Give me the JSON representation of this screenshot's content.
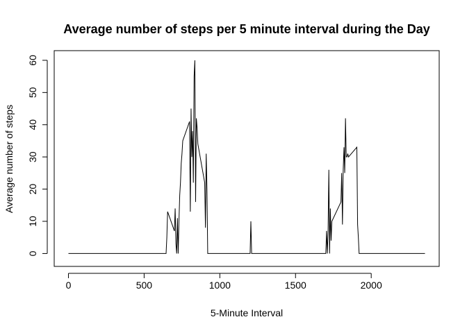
{
  "chart_data": {
    "type": "line",
    "title": "Average number of steps per 5 minute interval during the Day",
    "xlabel": "5-Minute Interval",
    "ylabel": "Average number of steps",
    "xlim": [
      -94,
      2449
    ],
    "ylim": [
      -4,
      63
    ],
    "x_ticks": [
      0,
      500,
      1000,
      1500,
      2000
    ],
    "y_ticks": [
      0,
      10,
      20,
      30,
      40,
      50,
      60
    ],
    "x_tick_labels": [
      "0",
      "500",
      "1000",
      "1500",
      "2000"
    ],
    "y_tick_labels": [
      "0",
      "10",
      "20",
      "30",
      "40",
      "50",
      "60"
    ],
    "grid": false,
    "legend": "none",
    "line_color": "#000000",
    "series": [
      {
        "x": [
          0,
          645,
          650,
          655,
          700,
          705,
          710,
          715,
          720,
          725,
          730,
          735,
          740,
          745,
          750,
          755,
          800,
          805,
          810,
          815,
          820,
          825,
          830,
          835,
          840,
          845,
          850,
          855,
          900,
          905,
          910,
          915,
          920,
          925,
          930,
          1200,
          1205,
          1210,
          1215,
          1700,
          1705,
          1710,
          1715,
          1720,
          1725,
          1730,
          1735,
          1740,
          1800,
          1805,
          1810,
          1815,
          1820,
          1825,
          1830,
          1835,
          1840,
          1845,
          1850,
          1905,
          1910,
          1915,
          1920,
          2355
        ],
        "y": [
          0,
          0,
          5,
          13,
          7,
          14,
          3,
          0,
          11,
          0,
          10,
          18,
          22,
          28,
          31,
          35,
          41,
          13,
          45,
          30,
          38,
          22,
          55,
          60,
          16,
          42,
          39,
          34,
          22,
          8,
          31,
          20,
          0,
          0,
          0,
          0,
          10,
          0,
          0,
          0,
          7,
          0,
          7,
          26,
          0,
          14,
          4,
          10,
          16,
          25,
          9,
          26,
          33,
          25,
          42,
          30,
          30,
          31,
          30,
          33,
          9,
          5,
          0,
          0
        ]
      }
    ]
  }
}
